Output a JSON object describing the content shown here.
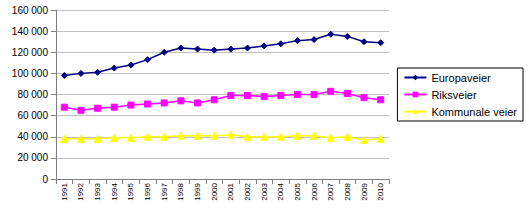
{
  "chart_data": {
    "type": "line",
    "categories": [
      "1991",
      "1992",
      "1993",
      "1994",
      "1995",
      "1996",
      "1997",
      "1998",
      "1999",
      "2000",
      "2001",
      "2002",
      "2003",
      "2004",
      "2005",
      "2006",
      "2007",
      "2008",
      "2009",
      "2010"
    ],
    "series": [
      {
        "name": "Europaveier",
        "color": "#000080",
        "marker": "diamond",
        "values": [
          98000,
          100000,
          101000,
          105000,
          108000,
          113000,
          120000,
          124000,
          123000,
          122000,
          123000,
          124000,
          126000,
          128000,
          131000,
          132000,
          137000,
          135000,
          130000,
          129000
        ]
      },
      {
        "name": "Riksveier",
        "color": "#ff00ff",
        "marker": "square",
        "values": [
          68000,
          65000,
          67000,
          68000,
          70000,
          71000,
          72000,
          74000,
          72000,
          75000,
          79000,
          79000,
          78000,
          79000,
          80000,
          80000,
          83000,
          81000,
          77000,
          75000
        ]
      },
      {
        "name": "Kommunale veier",
        "color": "#ffff00",
        "marker": "triangle",
        "values": [
          38000,
          38000,
          38000,
          39000,
          39000,
          40000,
          40000,
          41000,
          41000,
          41000,
          42000,
          40000,
          40000,
          40000,
          41000,
          41000,
          39000,
          40000,
          37000,
          38000
        ]
      }
    ],
    "ylim": [
      0,
      160000
    ],
    "yticks": [
      0,
      {
        "value": 20000,
        "label": "20 000"
      },
      {
        "value": 40000,
        "label": "40 000"
      },
      {
        "value": 60000,
        "label": "60 000"
      },
      {
        "value": 80000,
        "label": "80 000"
      },
      {
        "value": 100000,
        "label": "100 000"
      },
      {
        "value": 120000,
        "label": "120 000"
      },
      {
        "value": 140000,
        "label": "140 000"
      },
      {
        "value": 160000,
        "label": "160 000"
      }
    ],
    "grid": true,
    "legend": "right"
  }
}
